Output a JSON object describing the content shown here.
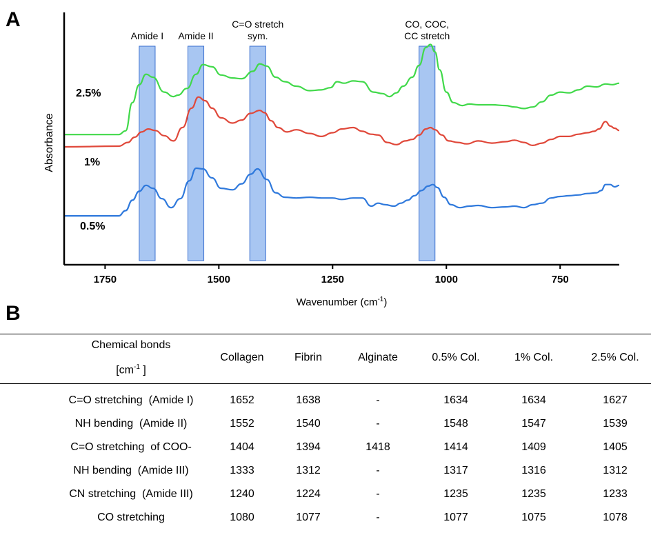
{
  "chart_data": {
    "type": "line",
    "panel_label": "A",
    "xlabel": "Wavenumber (cm",
    "xlabel_sup": "-1",
    "xlabel_end": ")",
    "ylabel": "Absorbance",
    "xlim": [
      1840,
      620
    ],
    "x_reversed": true,
    "xticks": [
      1750,
      1500,
      1250,
      1000,
      750
    ],
    "yticks": [],
    "y_units": "arbitrary (stacked traces)",
    "grid": false,
    "legend": "none",
    "bands": [
      {
        "label": [
          "Amide I"
        ],
        "from": 1675,
        "to": 1640
      },
      {
        "label": [
          "Amide II"
        ],
        "from": 1568,
        "to": 1533
      },
      {
        "label": [
          "C=O stretch",
          "sym."
        ],
        "from": 1432,
        "to": 1397
      },
      {
        "label": [
          "CO, COC,",
          "CC stretch"
        ],
        "from": 1060,
        "to": 1025
      }
    ],
    "band_color": "#a8c6f2",
    "band_edge_color": "#3a6fcf",
    "series": [
      {
        "name": "2.5%",
        "color": "#41d94a",
        "x": [
          1840,
          1720,
          1705,
          1690,
          1675,
          1660,
          1645,
          1620,
          1600,
          1590,
          1570,
          1550,
          1535,
          1515,
          1495,
          1470,
          1450,
          1425,
          1410,
          1395,
          1375,
          1355,
          1330,
          1300,
          1275,
          1255,
          1240,
          1225,
          1205,
          1185,
          1160,
          1140,
          1125,
          1110,
          1095,
          1075,
          1060,
          1045,
          1035,
          1025,
          1015,
          1000,
          985,
          965,
          950,
          930,
          900,
          870,
          850,
          830,
          810,
          790,
          770,
          750,
          730,
          710,
          690,
          670,
          650,
          635,
          620
        ],
        "y": [
          -0.15,
          -0.15,
          -0.1,
          0.28,
          0.52,
          0.66,
          0.62,
          0.42,
          0.36,
          0.38,
          0.47,
          0.66,
          0.79,
          0.76,
          0.65,
          0.61,
          0.6,
          0.7,
          0.8,
          0.77,
          0.62,
          0.56,
          0.5,
          0.44,
          0.45,
          0.48,
          0.56,
          0.54,
          0.57,
          0.56,
          0.42,
          0.4,
          0.36,
          0.41,
          0.5,
          0.62,
          0.78,
          1.02,
          1.06,
          0.96,
          0.72,
          0.42,
          0.28,
          0.24,
          0.26,
          0.25,
          0.25,
          0.24,
          0.22,
          0.2,
          0.22,
          0.29,
          0.38,
          0.42,
          0.41,
          0.45,
          0.5,
          0.49,
          0.53,
          0.52,
          0.54
        ]
      },
      {
        "name": "1%",
        "color": "#e0483a",
        "x": [
          1840,
          1720,
          1700,
          1685,
          1670,
          1655,
          1640,
          1620,
          1600,
          1580,
          1560,
          1545,
          1530,
          1515,
          1495,
          1470,
          1450,
          1430,
          1410,
          1400,
          1385,
          1370,
          1350,
          1330,
          1300,
          1275,
          1250,
          1230,
          1205,
          1185,
          1165,
          1150,
          1130,
          1110,
          1090,
          1075,
          1060,
          1045,
          1035,
          1025,
          1010,
          995,
          975,
          955,
          930,
          900,
          870,
          850,
          830,
          810,
          790,
          770,
          750,
          730,
          710,
          690,
          675,
          665,
          650,
          640,
          630,
          620
        ],
        "y": [
          0.12,
          0.13,
          0.18,
          0.25,
          0.32,
          0.36,
          0.34,
          0.27,
          0.2,
          0.38,
          0.64,
          0.79,
          0.74,
          0.64,
          0.51,
          0.44,
          0.48,
          0.57,
          0.61,
          0.58,
          0.47,
          0.38,
          0.32,
          0.35,
          0.3,
          0.26,
          0.31,
          0.36,
          0.38,
          0.33,
          0.29,
          0.28,
          0.18,
          0.15,
          0.2,
          0.22,
          0.28,
          0.36,
          0.38,
          0.35,
          0.28,
          0.2,
          0.18,
          0.16,
          0.2,
          0.17,
          0.19,
          0.21,
          0.18,
          0.14,
          0.17,
          0.22,
          0.26,
          0.26,
          0.29,
          0.31,
          0.33,
          0.36,
          0.46,
          0.4,
          0.37,
          0.34
        ]
      },
      {
        "name": "0.5%",
        "color": "#2f79dc",
        "x": [
          1840,
          1720,
          1705,
          1690,
          1675,
          1660,
          1645,
          1625,
          1605,
          1585,
          1565,
          1550,
          1535,
          1515,
          1495,
          1470,
          1450,
          1430,
          1415,
          1395,
          1375,
          1355,
          1330,
          1300,
          1275,
          1250,
          1230,
          1205,
          1185,
          1165,
          1150,
          1135,
          1115,
          1100,
          1085,
          1070,
          1055,
          1040,
          1030,
          1020,
          1005,
          990,
          970,
          950,
          930,
          900,
          870,
          850,
          830,
          810,
          790,
          770,
          750,
          730,
          710,
          690,
          670,
          660,
          650,
          640,
          630,
          620
        ],
        "y": [
          -0.01,
          -0.01,
          0.06,
          0.2,
          0.32,
          0.4,
          0.36,
          0.22,
          0.1,
          0.22,
          0.46,
          0.63,
          0.62,
          0.5,
          0.36,
          0.34,
          0.42,
          0.55,
          0.62,
          0.48,
          0.3,
          0.24,
          0.23,
          0.24,
          0.23,
          0.23,
          0.21,
          0.23,
          0.23,
          0.12,
          0.16,
          0.14,
          0.12,
          0.16,
          0.2,
          0.26,
          0.33,
          0.39,
          0.41,
          0.37,
          0.24,
          0.14,
          0.1,
          0.12,
          0.13,
          0.1,
          0.11,
          0.12,
          0.1,
          0.14,
          0.16,
          0.23,
          0.25,
          0.26,
          0.27,
          0.29,
          0.3,
          0.33,
          0.41,
          0.41,
          0.38,
          0.4
        ]
      }
    ]
  },
  "table": {
    "panel_label": "B",
    "header_line1": "Chemical bonds",
    "header_line2": "[cm",
    "header_line2_sup": "-1",
    "header_line2_end": " ]",
    "columns": [
      "Collagen",
      "Fibrin",
      "Alginate",
      "0.5% Col.",
      "1% Col.",
      "2.5% Col."
    ],
    "rows": [
      {
        "bond": "C=O stretching  (Amide I)",
        "values": [
          "1652",
          "1638",
          "-",
          "1634",
          "1634",
          "1627"
        ]
      },
      {
        "bond": "NH bending  (Amide II)",
        "values": [
          "1552",
          "1540",
          "-",
          "1548",
          "1547",
          "1539"
        ]
      },
      {
        "bond": "C=O stretching  of COO-",
        "values": [
          "1404",
          "1394",
          "1418",
          "1414",
          "1409",
          "1405"
        ]
      },
      {
        "bond": "NH bending  (Amide III)",
        "values": [
          "1333",
          "1312",
          "-",
          "1317",
          "1316",
          "1312"
        ]
      },
      {
        "bond": "CN stretching  (Amide III)",
        "values": [
          "1240",
          "1224",
          "-",
          "1235",
          "1235",
          "1233"
        ]
      },
      {
        "bond": "CO stretching",
        "values": [
          "1080",
          "1077",
          "-",
          "1077",
          "1075",
          "1078"
        ]
      }
    ]
  }
}
